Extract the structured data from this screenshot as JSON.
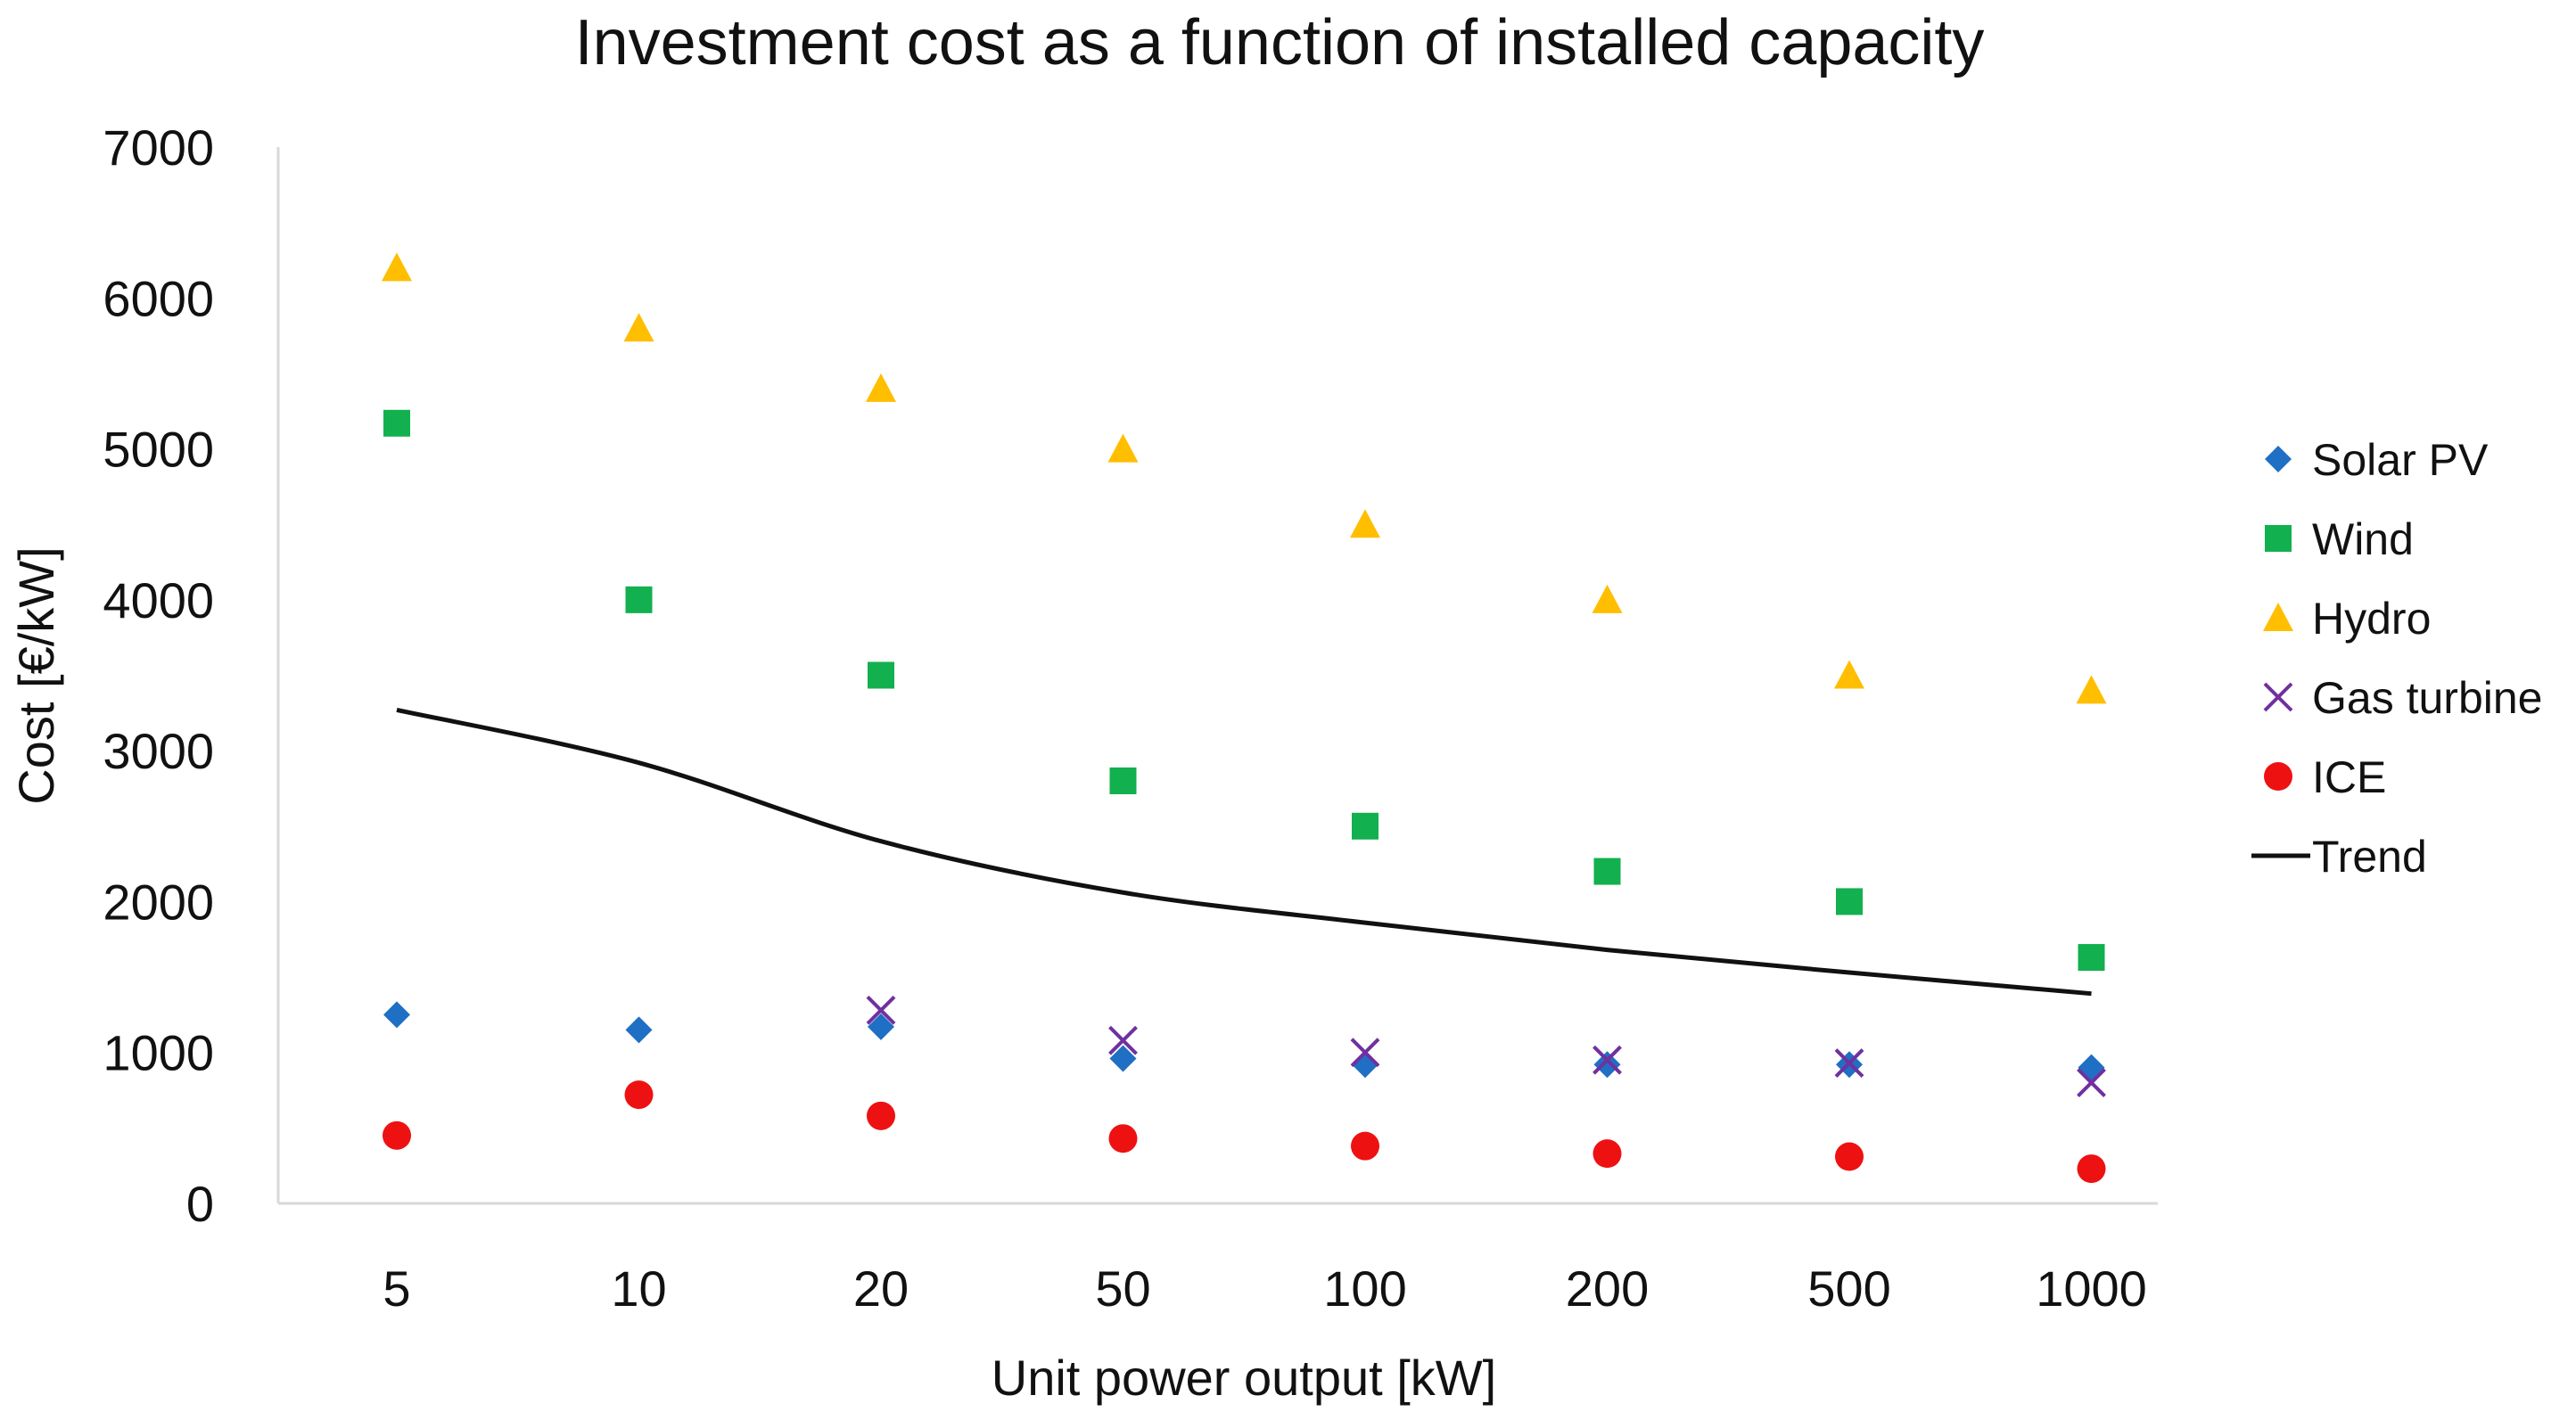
{
  "chart_data": {
    "type": "scatter",
    "title": "Investment cost as a function of installed capacity",
    "xlabel": "Unit power output [kW]",
    "ylabel": "Cost [€/kW]",
    "categories": [
      "5",
      "10",
      "20",
      "50",
      "100",
      "200",
      "500",
      "1000"
    ],
    "ylim": [
      0,
      7000
    ],
    "yticks": [
      0,
      1000,
      2000,
      3000,
      4000,
      5000,
      6000,
      7000
    ],
    "grid": false,
    "legend_position": "right",
    "series": [
      {
        "name": "Solar PV",
        "marker": "diamond",
        "color": "#1F6FC4",
        "values": [
          1250,
          1150,
          1170,
          960,
          920,
          920,
          920,
          900
        ]
      },
      {
        "name": "Wind",
        "marker": "square",
        "color": "#12B04E",
        "values": [
          5170,
          4000,
          3500,
          2800,
          2500,
          2200,
          2000,
          1630
        ]
      },
      {
        "name": "Hydro",
        "marker": "triangle",
        "color": "#FFBE00",
        "values": [
          6200,
          5800,
          5400,
          5000,
          4500,
          4000,
          3500,
          3400
        ]
      },
      {
        "name": "Gas turbine",
        "marker": "x",
        "color": "#7030A0",
        "values": [
          null,
          null,
          1280,
          1080,
          1000,
          950,
          930,
          800
        ]
      },
      {
        "name": "ICE",
        "marker": "circle",
        "color": "#EE1111",
        "values": [
          450,
          720,
          580,
          430,
          380,
          330,
          310,
          230
        ]
      },
      {
        "name": "Trend",
        "marker": "line",
        "color": "#111111",
        "values": [
          3270,
          2920,
          2400,
          2060,
          1860,
          1680,
          1530,
          1390
        ]
      }
    ]
  }
}
